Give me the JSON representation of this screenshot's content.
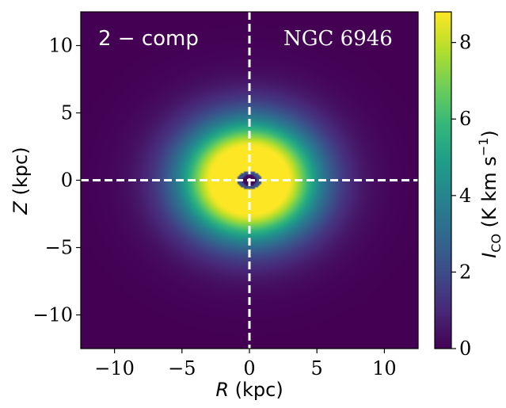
{
  "chart_data": {
    "type": "heatmap",
    "title": "",
    "xlabel": "R (kpc)",
    "ylabel": "Z (kpc)",
    "xlim": [
      -12.5,
      12.5
    ],
    "ylim": [
      -12.5,
      12.5
    ],
    "xticks": [
      -10,
      -5,
      0,
      5,
      10
    ],
    "yticks": [
      -10,
      -5,
      0,
      5,
      10
    ],
    "xtick_labels": [
      "−10",
      "−5",
      "0",
      "5",
      "10"
    ],
    "ytick_labels": [
      "−10",
      "−5",
      "0",
      "5",
      "10"
    ],
    "colorbar": {
      "label": "I_CO (K km s^-1)",
      "min": 0,
      "max": 8.8,
      "ticks": [
        0,
        2,
        4,
        6,
        8
      ],
      "tick_labels": [
        "0",
        "2",
        "4",
        "6",
        "8"
      ],
      "colormap": "viridis",
      "colormap_stops": [
        "#440154",
        "#482878",
        "#3e4a89",
        "#31688e",
        "#26828e",
        "#1f9e89",
        "#35b779",
        "#6ece58",
        "#b5de2b",
        "#fde725"
      ]
    },
    "model": {
      "outer_disk_peak": 8.8,
      "outer_disk_scale_r_kpc": 3.8,
      "outer_disk_scale_z_kpc": 3.3,
      "saturation_radius_kpc": 2.9,
      "central_hole_radius_kpc": 0.55,
      "central_ring_radius_kpc": 0.9,
      "central_ring_value": 2.2
    },
    "reference_lines": [
      {
        "orientation": "vertical",
        "value": 0,
        "style": "dashed",
        "color": "#ffffff"
      },
      {
        "orientation": "horizontal",
        "value": 0,
        "style": "dashed",
        "color": "#ffffff"
      }
    ],
    "annotations": {
      "model_label": "2 − comp",
      "galaxy_label": "NGC 6946"
    }
  }
}
